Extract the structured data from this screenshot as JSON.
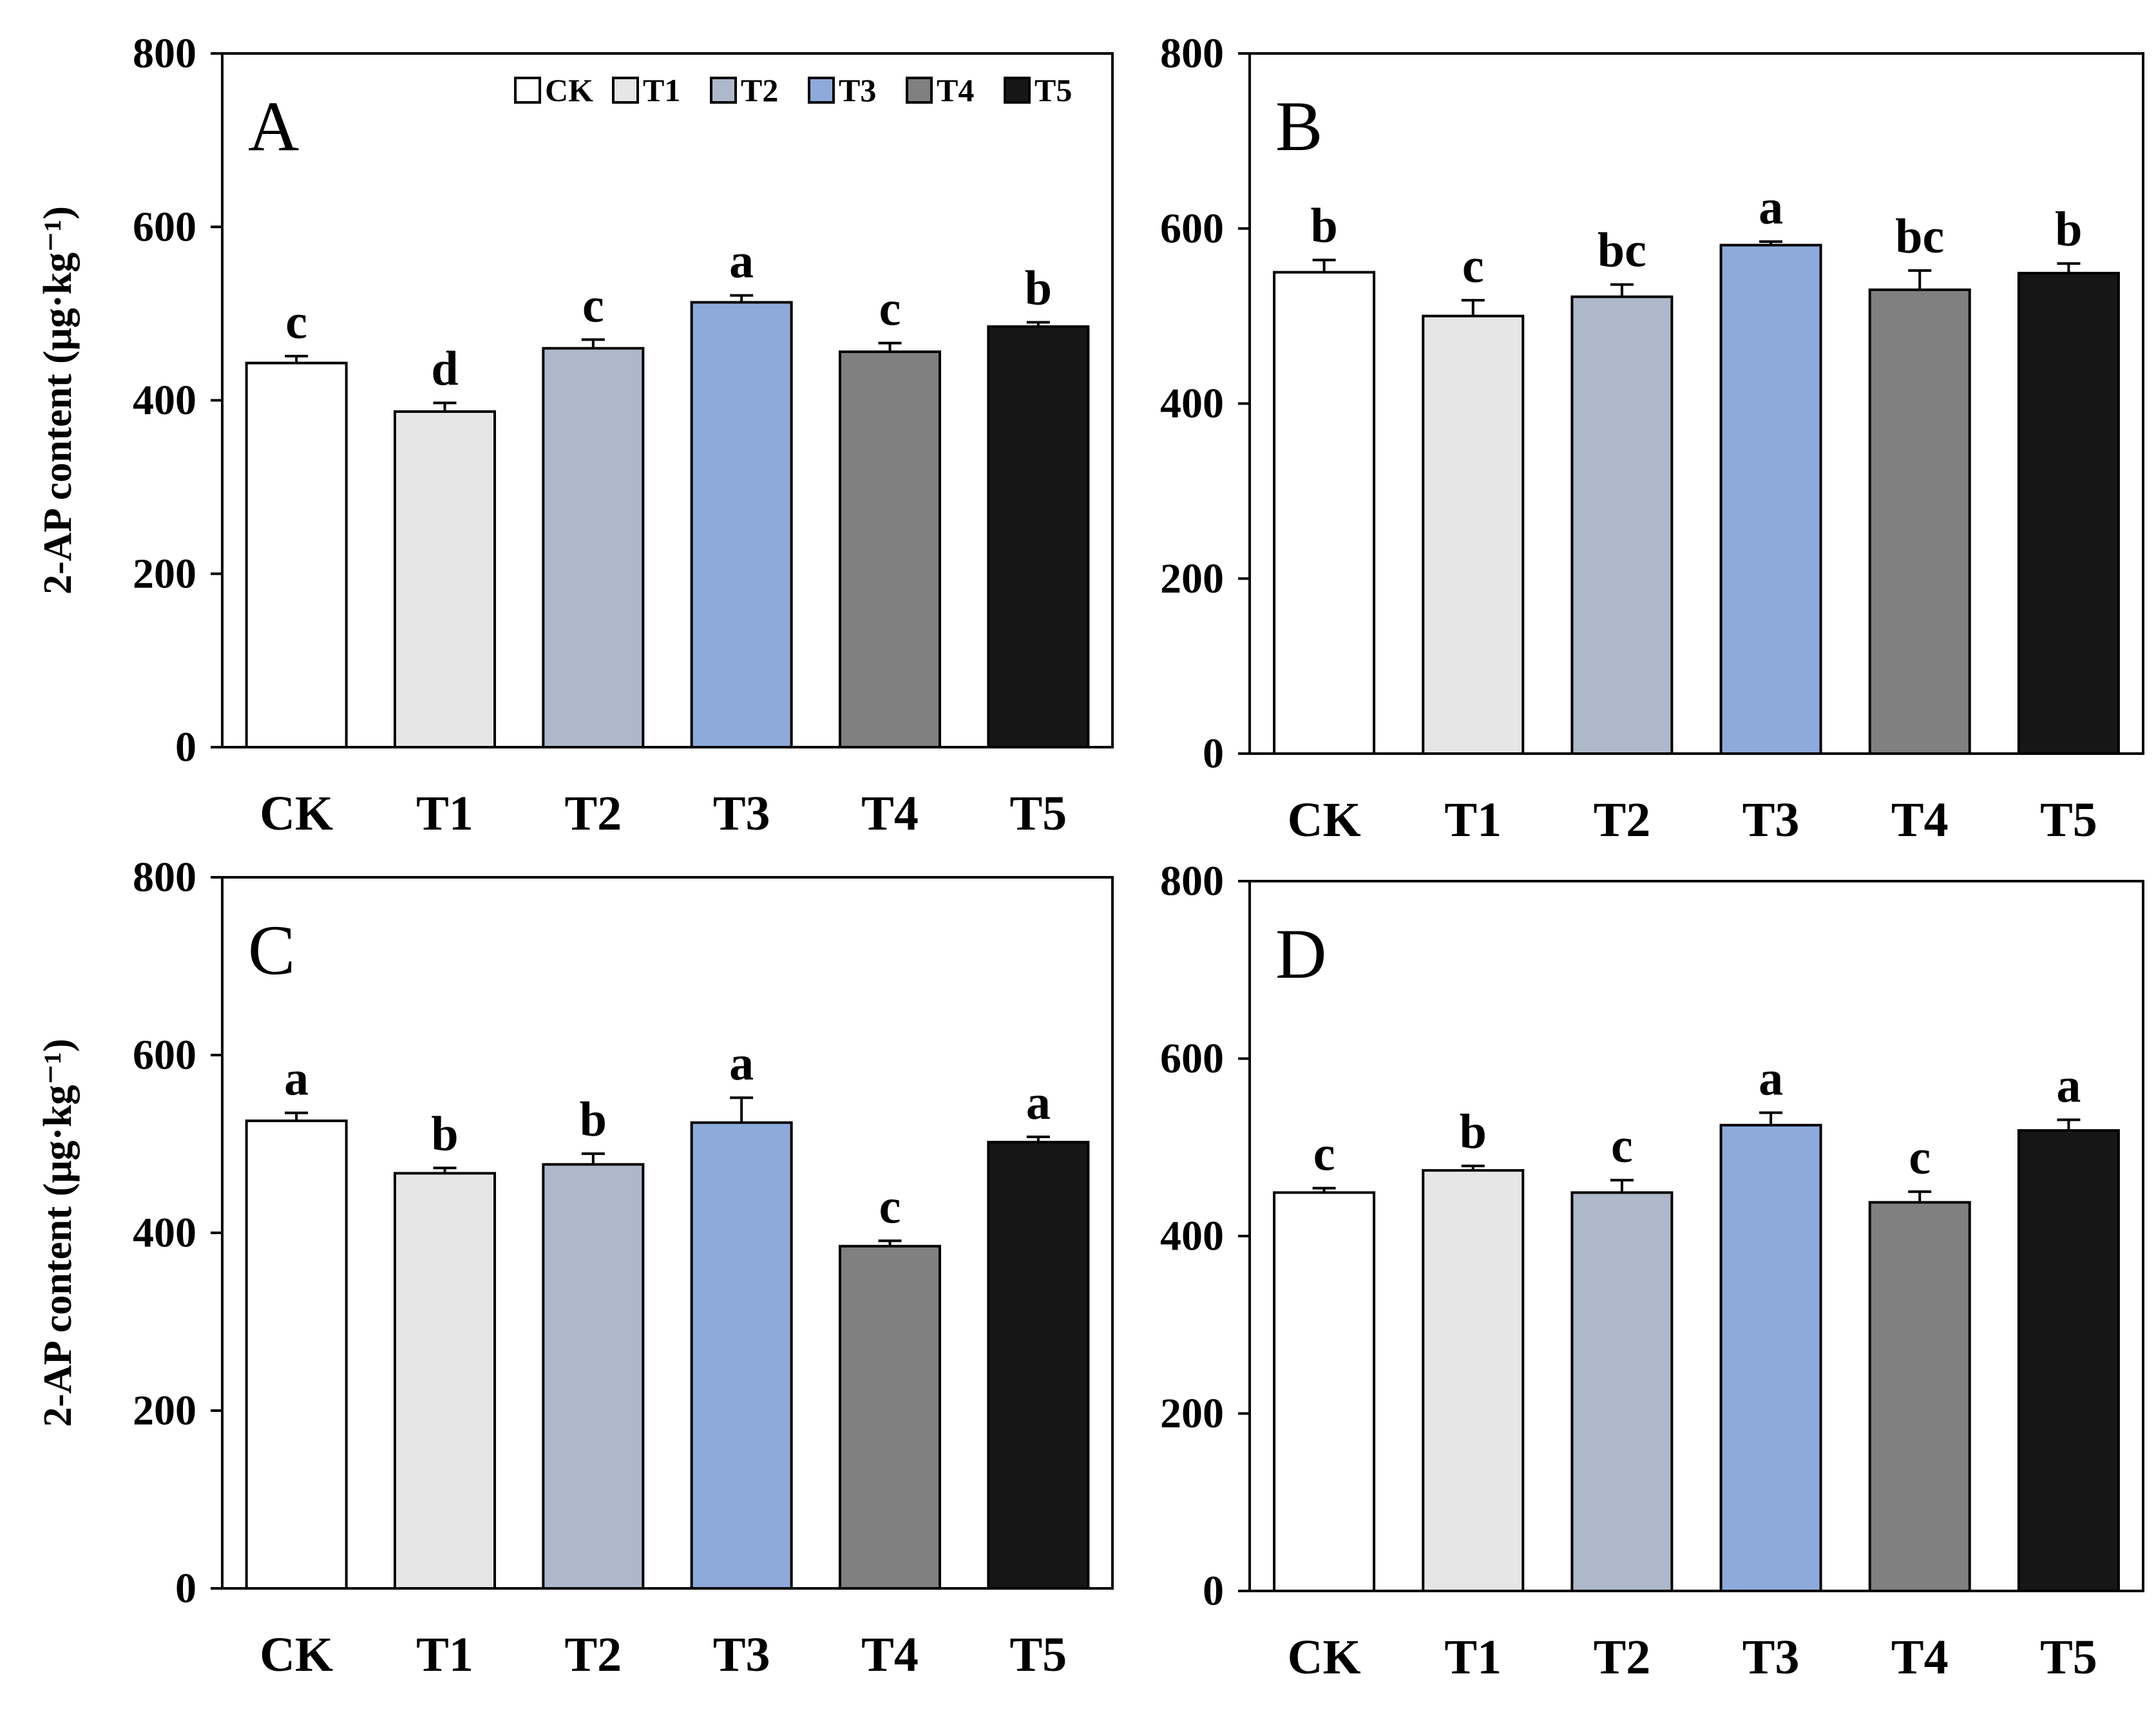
{
  "chart_data": [
    {
      "type": "bar",
      "panel_label": "A",
      "ylabel": "2-AP content (μg·kg⁻¹)",
      "ylim": [
        0,
        800
      ],
      "yticks": [
        "0",
        "200",
        "400",
        "600",
        "800"
      ],
      "categories": [
        "CK",
        "T1",
        "T2",
        "T3",
        "T4",
        "T5"
      ],
      "values": [
        443,
        387,
        460,
        513,
        456,
        485
      ],
      "errors": [
        8,
        10,
        10,
        8,
        10,
        5
      ],
      "significance": [
        "c",
        "d",
        "c",
        "a",
        "c",
        "b"
      ],
      "show_legend": true
    },
    {
      "type": "bar",
      "panel_label": "B",
      "ylabel": "",
      "ylim": [
        0,
        800
      ],
      "yticks": [
        "0",
        "200",
        "400",
        "600",
        "800"
      ],
      "categories": [
        "CK",
        "T1",
        "T2",
        "T3",
        "T4",
        "T5"
      ],
      "values": [
        550,
        500,
        522,
        581,
        530,
        549
      ],
      "errors": [
        14,
        18,
        14,
        4,
        22,
        11
      ],
      "significance": [
        "b",
        "c",
        "bc",
        "a",
        "bc",
        "b"
      ],
      "show_legend": false
    },
    {
      "type": "bar",
      "panel_label": "C",
      "ylabel": "2-AP content (μg·kg⁻¹)",
      "ylim": [
        0,
        800
      ],
      "yticks": [
        "0",
        "200",
        "400",
        "600",
        "800"
      ],
      "categories": [
        "CK",
        "T1",
        "T2",
        "T3",
        "T4",
        "T5"
      ],
      "values": [
        526,
        467,
        477,
        524,
        385,
        502
      ],
      "errors": [
        9,
        6,
        12,
        28,
        6,
        6
      ],
      "significance": [
        "a",
        "b",
        "b",
        "a",
        "c",
        "a"
      ],
      "show_legend": false
    },
    {
      "type": "bar",
      "panel_label": "D",
      "ylabel": "",
      "ylim": [
        0,
        800
      ],
      "yticks": [
        "0",
        "200",
        "400",
        "600",
        "800"
      ],
      "categories": [
        "CK",
        "T1",
        "T2",
        "T3",
        "T4",
        "T5"
      ],
      "values": [
        449,
        474,
        449,
        525,
        438,
        519
      ],
      "errors": [
        5,
        5,
        14,
        14,
        12,
        12
      ],
      "significance": [
        "c",
        "b",
        "c",
        "a",
        "c",
        "a"
      ],
      "show_legend": false
    }
  ],
  "legend": {
    "entries": [
      "CK",
      "T1",
      "T2",
      "T3",
      "T4",
      "T5"
    ]
  },
  "colors": {
    "CK": "#ffffff",
    "T1": "#e6e6e6",
    "T2": "#adb9ca",
    "T3": "#8eaadb",
    "T4": "#808080",
    "T5": "#161616"
  }
}
